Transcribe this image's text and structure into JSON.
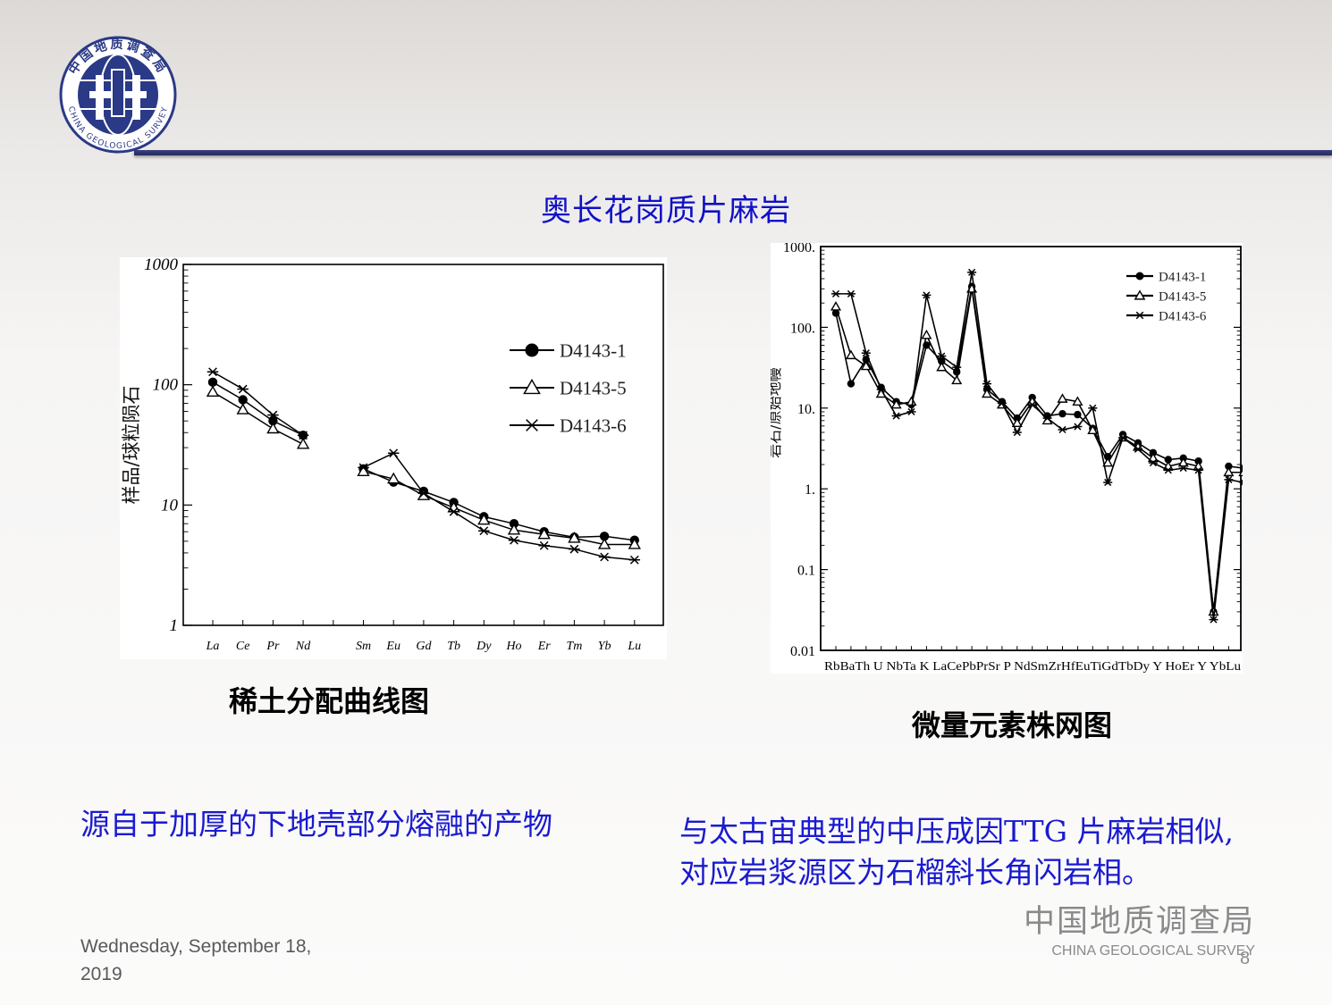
{
  "slide": {
    "title": "奥长花岗质片麻岩",
    "logo_text": "中国地质调查局",
    "logo_text_en": "CHINA GEOLOGICAL SURVEY",
    "caption_left": "稀土分配曲线图",
    "caption_right": "微量元素株网图",
    "note_left": "源自于加厚的下地壳部分熔融的产物",
    "note_right_line1": "与太古宙典型的中压成因TTG 片麻岩相似,",
    "note_right_line2": "对应岩浆源区为石榴斜长角闪岩相。",
    "footer_date_line1": "Wednesday, September 18,",
    "footer_date_line2": "2019",
    "footer_org_zh": "中国地质调查局",
    "footer_org_en": "CHINA GEOLOGICAL SURVEY",
    "page_number": "8",
    "colors": {
      "title": "#1010c8",
      "note": "#1a1ad0",
      "header_line": "#2e3470",
      "footer": "#8a8a8a"
    }
  },
  "chart_data": [
    {
      "type": "line",
      "yscale": "log",
      "ylabel": "样品/球粒陨石",
      "ylim": [
        1,
        1000
      ],
      "yticks": [
        "1",
        "10",
        "100",
        "1000"
      ],
      "categories": [
        "La",
        "Ce",
        "Pr",
        "Nd",
        "",
        "Sm",
        "Eu",
        "Gd",
        "Tb",
        "Dy",
        "Ho",
        "Er",
        "Tm",
        "Yb",
        "Lu"
      ],
      "legend_position": "top-right",
      "series": [
        {
          "name": "D4143-1",
          "marker": "circle",
          "values": [
            105,
            75,
            50,
            38,
            null,
            20,
            15.5,
            13,
            10.5,
            8,
            7,
            6,
            5.4,
            5.5,
            5.1
          ]
        },
        {
          "name": "D4143-5",
          "marker": "triangle",
          "values": [
            87,
            62,
            43,
            32,
            null,
            19,
            16.5,
            12,
            9.5,
            7.5,
            6.2,
            5.7,
            5.3,
            4.7,
            4.7
          ]
        },
        {
          "name": "D4143-6",
          "marker": "star",
          "values": [
            128,
            92,
            56,
            38,
            null,
            20.5,
            27,
            12.5,
            8.8,
            6.1,
            5.1,
            4.6,
            4.3,
            3.7,
            3.5
          ]
        }
      ]
    },
    {
      "type": "line",
      "yscale": "log",
      "ylabel": "岩石/原始地幔",
      "ylim": [
        0.01,
        1000
      ],
      "yticks": [
        "0.01",
        "0.1",
        "1.",
        "10.",
        "100.",
        "1000."
      ],
      "categories": [
        "Rb",
        "Ba",
        "Th",
        "U",
        "Nb",
        "Ta",
        "K",
        "La",
        "Ce",
        "Pb",
        "Pr",
        "Sr",
        "P",
        "Nd",
        "Sm",
        "Zr",
        "Hf",
        "Eu",
        "Ti",
        "Gd",
        "Tb",
        "Dy",
        "Y",
        "Ho",
        "Er",
        "Y",
        "Yb",
        "Lu"
      ],
      "tick_labels": [
        "RbBaTh U NbTa K LaCePbPrSr P NdSmZrHfEuTiGdTbDy Y HoEr Y YbLu"
      ],
      "legend_position": "top-right",
      "series": [
        {
          "name": "D4143-1",
          "marker": "circle",
          "values": [
            150,
            20,
            40,
            18,
            12,
            11,
            60,
            38,
            28,
            320,
            17,
            12,
            7.5,
            13.5,
            8,
            8.5,
            8.3,
            5.6,
            2.5,
            4.7,
            3.7,
            2.8,
            2.3,
            2.4,
            2.2,
            0.03,
            1.9,
            1.8
          ]
        },
        {
          "name": "D4143-5",
          "marker": "triangle",
          "values": [
            180,
            45,
            33,
            15,
            11,
            12,
            80,
            32,
            22,
            300,
            15,
            11,
            6.5,
            12,
            7,
            13,
            12,
            5.3,
            2.1,
            4.3,
            3.3,
            2.4,
            1.9,
            2.1,
            1.9,
            0.03,
            1.6,
            1.6
          ]
        },
        {
          "name": "D4143-6",
          "marker": "star",
          "values": [
            260,
            260,
            48,
            17,
            8,
            9,
            250,
            44,
            32,
            480,
            20,
            11.5,
            5,
            11,
            7.5,
            5.4,
            5.9,
            10,
            1.2,
            4.3,
            3.1,
            2.1,
            1.7,
            1.8,
            1.7,
            0.024,
            1.3,
            1.2
          ]
        }
      ]
    }
  ]
}
